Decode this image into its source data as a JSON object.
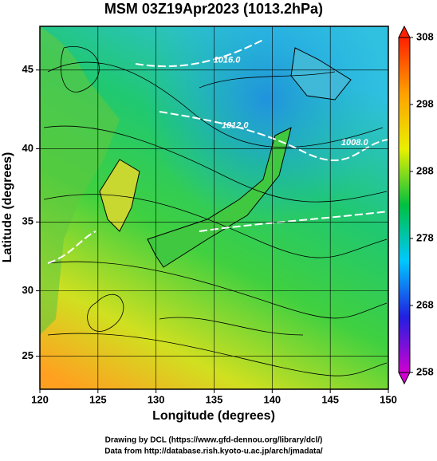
{
  "chart_data": {
    "type": "map",
    "title": "MSM 03Z19Apr2023 (1013.2hPa)",
    "x_label": "Longitude (degrees)",
    "y_label": "Latitude  (degrees)",
    "xlim": [
      120,
      150
    ],
    "xticks": [
      120,
      125,
      130,
      135,
      140,
      145,
      150
    ],
    "ylim": [
      22.4,
      47.6
    ],
    "yticks": [
      25,
      30,
      35,
      40,
      45
    ],
    "y_scale": "mercator",
    "grid": true,
    "clim": [
      258,
      308
    ],
    "cticks": [
      258,
      268,
      278,
      288,
      298,
      308
    ],
    "colorbar_colors": [
      "#d000d0",
      "#2020e0",
      "#00c8ff",
      "#00c040",
      "#e8f000",
      "#ffa000",
      "#ff2000"
    ],
    "annotations": [
      {
        "text": "1016.0",
        "lon": 136.1,
        "lat": 45.6
      },
      {
        "text": "1012.0",
        "lon": 136.8,
        "lat": 41.5
      },
      {
        "text": "1008.0",
        "lon": 147.1,
        "lat": 40.4
      }
    ],
    "footer": [
      "Drawing by DCL (https://www.gfd-dennou.org/library/dcl/)",
      "Data from http://database.rish.kyoto-u.ac.jp/arch/jmadata/"
    ]
  }
}
